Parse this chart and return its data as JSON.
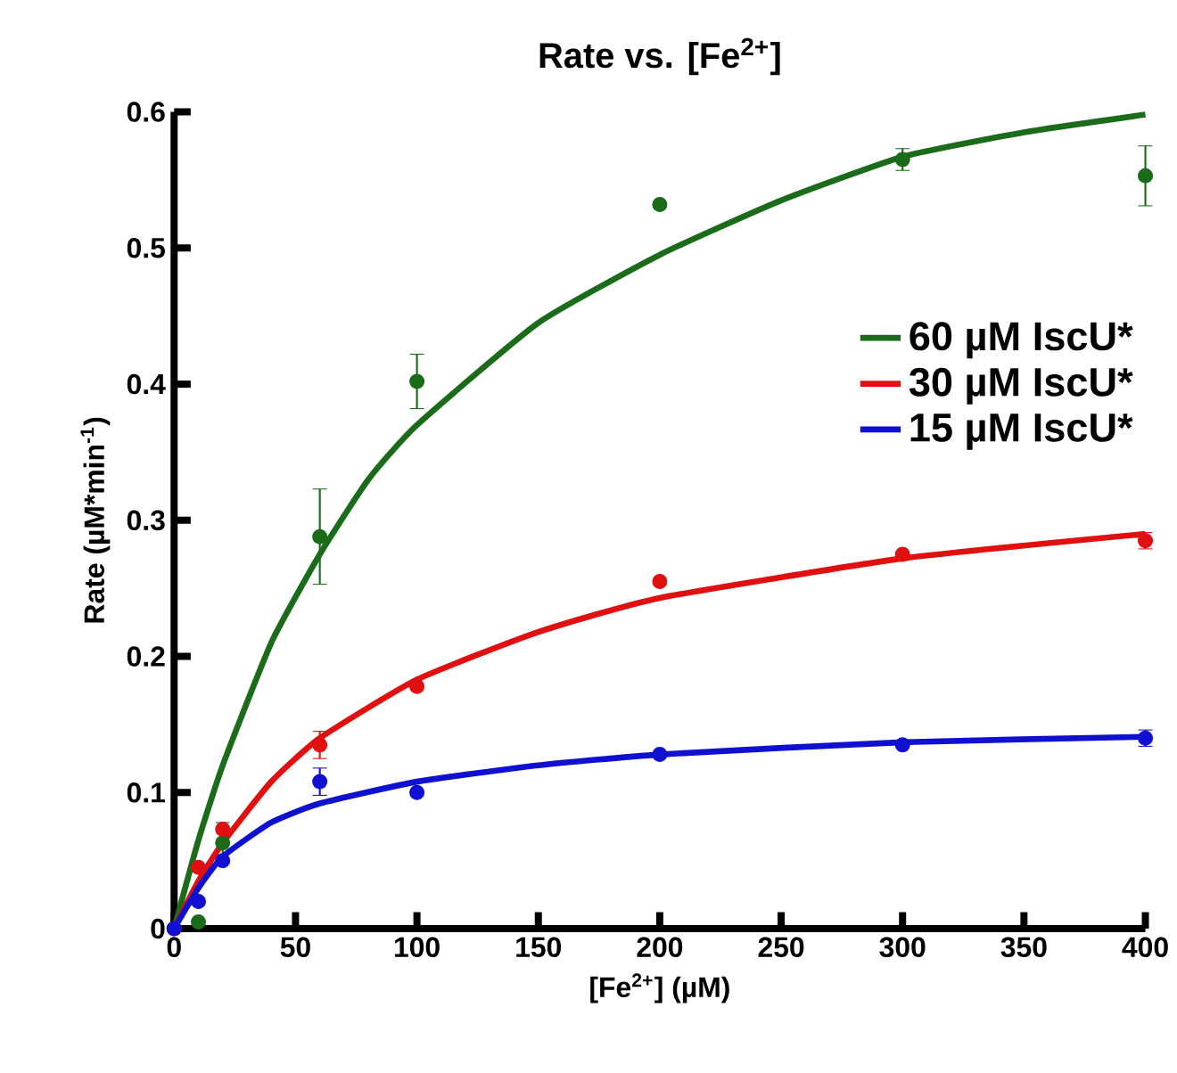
{
  "chart_data": {
    "type": "scatter",
    "title": "Rate vs. [Fe$^{2+}$]",
    "xlabel": "[Fe$^{2+}$] (µM)",
    "ylabel": "Rate (µM*min$^{-1}$)",
    "xlim": [
      0,
      400
    ],
    "xticks": [
      0,
      50,
      100,
      150,
      200,
      250,
      300,
      350,
      400
    ],
    "ylim": [
      0,
      0.6
    ],
    "yticks": [
      0,
      0.1,
      0.2,
      0.3,
      0.4,
      0.5,
      0.6
    ],
    "grid": false,
    "legend": "right",
    "series": [
      {
        "color": "#1a6b1a",
        "marker": "circle",
        "x": [
          0,
          10,
          20,
          60,
          100,
          200,
          300,
          400
        ],
        "values": [
          0,
          0.005,
          0.063,
          0.288,
          0.402,
          0.532,
          0.565,
          0.553
        ],
        "errors": [
          null,
          null,
          0.015,
          0.035,
          0.02,
          null,
          0.008,
          0.022
        ]
      },
      {
        "color": "#e01010",
        "marker": "circle",
        "x": [
          0,
          10,
          20,
          60,
          100,
          200,
          300,
          400
        ],
        "values": [
          0,
          0.045,
          0.073,
          0.135,
          0.178,
          0.255,
          0.275,
          0.285
        ],
        "errors": [
          null,
          null,
          null,
          0.01,
          null,
          null,
          null,
          0.006
        ]
      },
      {
        "color": "#1010d0",
        "marker": "circle",
        "x": [
          0,
          10,
          20,
          60,
          100,
          200,
          300,
          400
        ],
        "values": [
          0,
          0.02,
          0.05,
          0.108,
          0.1,
          0.128,
          0.135,
          0.14
        ],
        "errors": [
          null,
          null,
          null,
          0.01,
          null,
          null,
          null,
          0.006
        ]
      },
      {
        "type": "line",
        "marker": "none",
        "name": "60 µM IscU*",
        "color": "#1a6b1a",
        "x": [
          0,
          10,
          20,
          40,
          60,
          80,
          100,
          150,
          200,
          250,
          300,
          350,
          400
        ],
        "values": [
          0,
          0.065,
          0.12,
          0.21,
          0.275,
          0.33,
          0.37,
          0.445,
          0.495,
          0.535,
          0.567,
          0.585,
          0.598
        ]
      },
      {
        "type": "line",
        "marker": "none",
        "name": "30 µM IscU*",
        "color": "#e01010",
        "x": [
          0,
          10,
          20,
          40,
          60,
          100,
          150,
          200,
          300,
          400
        ],
        "values": [
          0,
          0.035,
          0.063,
          0.108,
          0.14,
          0.183,
          0.218,
          0.243,
          0.272,
          0.29
        ]
      },
      {
        "type": "line",
        "marker": "none",
        "name": "15 µM IscU*",
        "color": "#1010d0",
        "x": [
          0,
          10,
          20,
          40,
          60,
          100,
          150,
          200,
          300,
          400
        ],
        "values": [
          0,
          0.03,
          0.053,
          0.078,
          0.092,
          0.108,
          0.12,
          0.128,
          0.137,
          0.141
        ]
      }
    ]
  }
}
